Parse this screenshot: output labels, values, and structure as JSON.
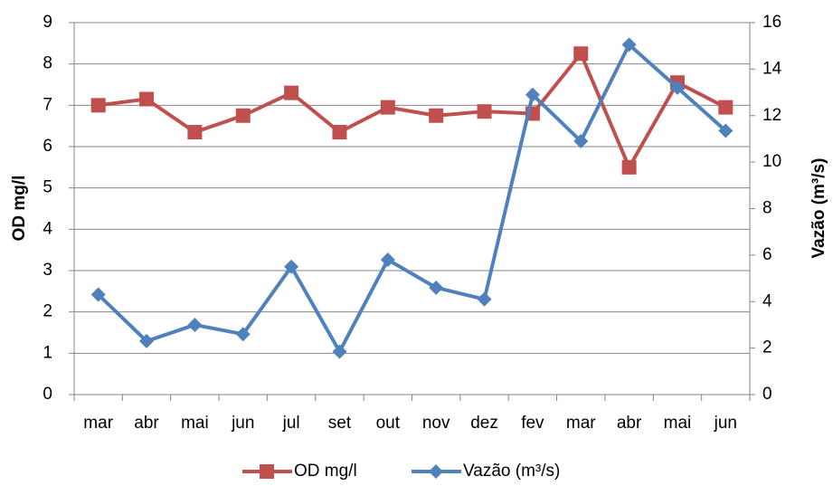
{
  "chart_data": {
    "type": "line",
    "categories": [
      "mar",
      "abr",
      "mai",
      "jun",
      "jul",
      "set",
      "out",
      "nov",
      "dez",
      "fev",
      "mar",
      "abr",
      "mai",
      "jun"
    ],
    "series": [
      {
        "name": "OD mg/l",
        "color": "#c0504d",
        "marker": "square",
        "values": [
          7.0,
          7.15,
          6.35,
          6.75,
          7.3,
          6.35,
          6.95,
          6.75,
          6.85,
          6.8,
          8.25,
          5.5,
          7.55,
          6.95
        ]
      },
      {
        "name": "Vazão (m³/s)",
        "color": "#4f81bd",
        "marker": "diamond",
        "axis": "y2",
        "values": [
          4.3,
          2.3,
          3.0,
          2.6,
          5.5,
          1.85,
          5.8,
          4.6,
          4.1,
          12.9,
          10.9,
          15.05,
          13.2,
          11.35
        ]
      }
    ],
    "ylabel": "OD mg/l",
    "y2label": "Vazão (m³/s)",
    "ylim": [
      0,
      9
    ],
    "yticks": [
      0,
      1,
      2,
      3,
      4,
      5,
      6,
      7,
      8,
      9
    ],
    "y2lim": [
      0,
      16
    ],
    "y2ticks": [
      0,
      2,
      4,
      6,
      8,
      10,
      12,
      14,
      16
    ],
    "grid": true,
    "legend": "bottom"
  }
}
